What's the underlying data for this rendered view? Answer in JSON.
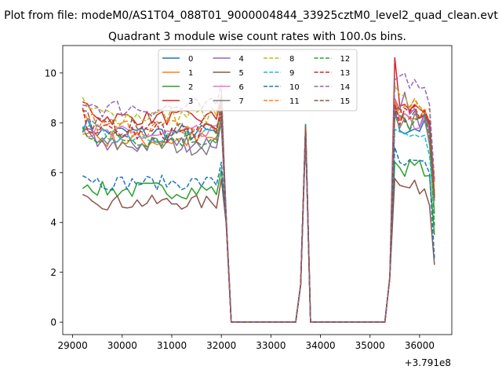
{
  "chart_data": {
    "type": "line",
    "suptitle": "Plot from file: modeM0/AS1T04_088T01_9000004844_33925cztM0_level2_quad_clean.evt",
    "title": "Quadrant 3 module wise count rates with 100.0s bins.",
    "xlabel": "",
    "ylabel": "",
    "x_offset_label": "+3.791e8",
    "xlim": [
      28800,
      36650
    ],
    "ylim": [
      -0.5,
      11.1
    ],
    "xticks": [
      29000,
      30000,
      31000,
      32000,
      33000,
      34000,
      35000,
      36000
    ],
    "yticks": [
      0,
      2,
      4,
      6,
      8,
      10
    ],
    "legend": {
      "placement": "upper center",
      "ncol": 4
    },
    "segments": [
      {
        "x_start": 29200,
        "x_end": 32000,
        "step": 100
      },
      {
        "x_start": 32100,
        "x_end": 32100,
        "step": 100
      },
      {
        "x_start": 32200,
        "x_end": 33500,
        "step": 100
      },
      {
        "x_start": 33600,
        "x_end": 33800,
        "step": 100
      },
      {
        "x_start": 33800,
        "x_end": 35300,
        "step": 100
      },
      {
        "x_start": 35400,
        "x_end": 36300,
        "step": 100
      }
    ],
    "series": [
      {
        "name": "0",
        "color": "#1f77b4",
        "dashed": false,
        "level1": 7.6,
        "level2": 7.8,
        "amp": 0.35
      },
      {
        "name": "1",
        "color": "#ff7f0e",
        "dashed": false,
        "level1": 7.3,
        "level2": 8.3,
        "amp": 0.4
      },
      {
        "name": "2",
        "color": "#2ca02c",
        "dashed": false,
        "level1": 5.3,
        "level2": 6.2,
        "amp": 0.35
      },
      {
        "name": "3",
        "color": "#d62728",
        "dashed": false,
        "level1": 8.2,
        "level2": 8.6,
        "amp": 0.3
      },
      {
        "name": "4",
        "color": "#9467bd",
        "dashed": false,
        "level1": 7.2,
        "level2": 8.2,
        "amp": 0.4
      },
      {
        "name": "5",
        "color": "#8c564b",
        "dashed": false,
        "level1": 4.8,
        "level2": 5.4,
        "amp": 0.3
      },
      {
        "name": "6",
        "color": "#e377c2",
        "dashed": false,
        "level1": 7.5,
        "level2": 8.0,
        "amp": 0.4
      },
      {
        "name": "7",
        "color": "#7f7f7f",
        "dashed": false,
        "level1": 7.1,
        "level2": 8.1,
        "amp": 0.4
      },
      {
        "name": "8",
        "color": "#bcbd22",
        "dashed": true,
        "level1": 8.3,
        "level2": 8.8,
        "amp": 0.4
      },
      {
        "name": "9",
        "color": "#17becf",
        "dashed": true,
        "level1": 7.5,
        "level2": 7.5,
        "amp": 0.3
      },
      {
        "name": "10",
        "color": "#1f77b4",
        "dashed": true,
        "level1": 5.6,
        "level2": 6.3,
        "amp": 0.3
      },
      {
        "name": "11",
        "color": "#ff7f0e",
        "dashed": true,
        "level1": 7.8,
        "level2": 8.6,
        "amp": 0.4
      },
      {
        "name": "12",
        "color": "#2ca02c",
        "dashed": true,
        "level1": 7.4,
        "level2": 8.0,
        "amp": 0.4
      },
      {
        "name": "13",
        "color": "#d62728",
        "dashed": true,
        "level1": 7.6,
        "level2": 8.3,
        "amp": 0.4
      },
      {
        "name": "14",
        "color": "#9467bd",
        "dashed": true,
        "level1": 8.6,
        "level2": 9.6,
        "amp": 0.4
      },
      {
        "name": "15",
        "color": "#8c564b",
        "dashed": true,
        "level1": 7.8,
        "level2": 8.3,
        "amp": 0.4
      }
    ],
    "spike": {
      "x": 33700,
      "peak": 7.7,
      "shoulder": 1.5
    },
    "transition": {
      "x_drop": 32100,
      "drop_value": 4.0,
      "x_rise": 35400,
      "rise_value": 1.8
    }
  }
}
